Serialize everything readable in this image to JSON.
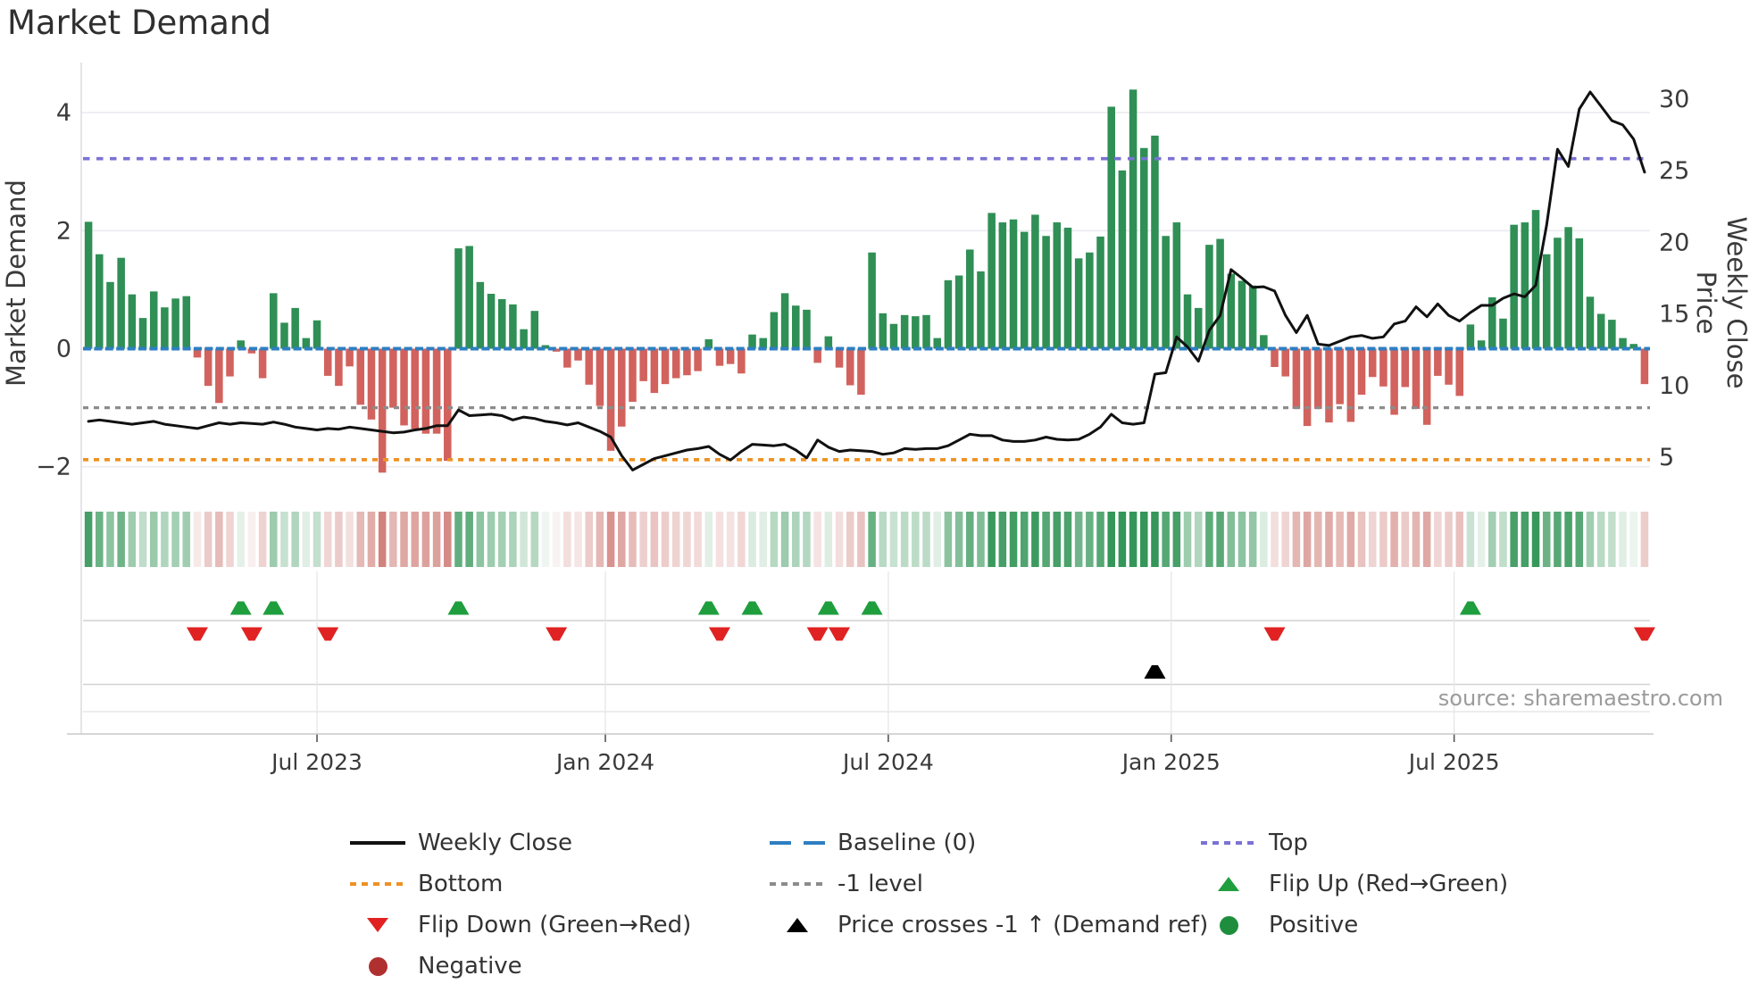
{
  "page": {
    "title": "Market Demand",
    "source_note": "source: sharemaestro.com"
  },
  "chart_data": {
    "type": "bar+line+heatmap",
    "title": "Market Demand",
    "ylabel_left": "Market Demand",
    "ylabel_right": "Weekly Close Price",
    "x_axis": "weekly dates, Feb 2023 - Nov 2025",
    "grid": true,
    "x_ticks": [
      {
        "label": "Jul 2023",
        "week": 21.5
      },
      {
        "label": "Jan 2024",
        "week": 48.0
      },
      {
        "label": "Jul 2024",
        "week": 74.0
      },
      {
        "label": "Jan 2025",
        "week": 100.0
      },
      {
        "label": "Jul 2025",
        "week": 126.0
      }
    ],
    "y_left_ticks": [
      {
        "label": "4",
        "value": 4
      },
      {
        "label": "2",
        "value": 2
      },
      {
        "label": "0",
        "value": 0
      },
      {
        "label": "−2",
        "value": -2
      }
    ],
    "y_right_ticks": [
      {
        "label": "30",
        "value": 30
      },
      {
        "label": "25",
        "value": 25
      },
      {
        "label": "20",
        "value": 20
      },
      {
        "label": "15",
        "value": 15
      },
      {
        "label": "10",
        "value": 10
      },
      {
        "label": "5",
        "value": 5
      }
    ],
    "ylim_left": [
      -2.55,
      4.85
    ],
    "ylim_right": [
      2.0,
      32.5
    ],
    "reference_lines": {
      "baseline": 0,
      "top": 3.22,
      "minus1": -1,
      "bottom": -1.88
    },
    "series": [
      {
        "name": "Market Demand (weekly bars)",
        "axis": "left",
        "values": [
          2.15,
          1.6,
          1.13,
          1.54,
          0.92,
          0.52,
          0.97,
          0.7,
          0.85,
          0.89,
          -0.15,
          -0.63,
          -0.92,
          -0.47,
          0.14,
          -0.08,
          -0.5,
          0.94,
          0.44,
          0.69,
          0.18,
          0.48,
          -0.46,
          -0.63,
          -0.3,
          -0.95,
          -1.2,
          -2.1,
          -1.0,
          -1.3,
          -1.36,
          -1.44,
          -1.44,
          -1.9,
          1.7,
          1.74,
          1.13,
          0.93,
          0.84,
          0.75,
          0.33,
          0.64,
          0.06,
          -0.05,
          -0.32,
          -0.2,
          -0.61,
          -0.97,
          -1.73,
          -1.32,
          -0.9,
          -0.55,
          -0.75,
          -0.6,
          -0.5,
          -0.45,
          -0.38,
          0.16,
          -0.29,
          -0.26,
          -0.42,
          0.24,
          0.18,
          0.62,
          0.94,
          0.73,
          0.66,
          -0.24,
          0.21,
          -0.32,
          -0.62,
          -0.78,
          1.63,
          0.6,
          0.42,
          0.57,
          0.55,
          0.57,
          0.18,
          1.16,
          1.24,
          1.68,
          1.31,
          2.3,
          2.14,
          2.19,
          1.98,
          2.27,
          1.91,
          2.14,
          2.05,
          1.53,
          1.63,
          1.9,
          4.1,
          3.02,
          4.39,
          3.4,
          3.61,
          1.91,
          2.14,
          0.92,
          0.69,
          1.76,
          1.86,
          1.27,
          1.15,
          1.07,
          0.23,
          -0.31,
          -0.47,
          -1.02,
          -1.31,
          -1.02,
          -1.25,
          -0.94,
          -1.24,
          -0.78,
          -0.48,
          -0.64,
          -1.12,
          -0.65,
          -1.02,
          -1.29,
          -0.46,
          -0.61,
          -0.8,
          0.41,
          0.14,
          0.87,
          0.51,
          2.1,
          2.14,
          2.35,
          1.6,
          1.88,
          2.06,
          1.87,
          0.88,
          0.59,
          0.49,
          0.18,
          0.08,
          -0.6
        ]
      },
      {
        "name": "Weekly Close",
        "axis": "right",
        "values": [
          7.5,
          7.6,
          7.5,
          7.4,
          7.3,
          7.4,
          7.5,
          7.3,
          7.2,
          7.1,
          7.0,
          7.2,
          7.4,
          7.3,
          7.4,
          7.35,
          7.3,
          7.45,
          7.3,
          7.1,
          7.0,
          6.9,
          7.0,
          6.95,
          7.1,
          7.0,
          6.9,
          6.8,
          6.7,
          6.75,
          6.9,
          7.0,
          7.2,
          7.2,
          8.3,
          7.9,
          7.95,
          8.0,
          7.9,
          7.6,
          7.8,
          7.7,
          7.5,
          7.4,
          7.25,
          7.4,
          7.1,
          6.8,
          6.4,
          5.1,
          4.1,
          4.5,
          4.9,
          5.1,
          5.3,
          5.5,
          5.6,
          5.75,
          5.2,
          4.8,
          5.4,
          5.9,
          5.85,
          5.8,
          5.9,
          5.5,
          4.95,
          6.2,
          5.7,
          5.4,
          5.5,
          5.45,
          5.4,
          5.2,
          5.3,
          5.6,
          5.55,
          5.6,
          5.6,
          5.8,
          6.2,
          6.6,
          6.5,
          6.5,
          6.2,
          6.1,
          6.1,
          6.2,
          6.4,
          6.25,
          6.2,
          6.25,
          6.6,
          7.1,
          8.0,
          7.4,
          7.3,
          7.4,
          10.8,
          10.9,
          13.4,
          12.7,
          11.7,
          13.85,
          14.9,
          18.1,
          17.5,
          16.85,
          16.9,
          16.6,
          14.9,
          13.7,
          14.9,
          12.9,
          12.8,
          13.1,
          13.4,
          13.5,
          13.3,
          13.4,
          14.3,
          14.5,
          15.5,
          14.8,
          15.7,
          14.9,
          14.5,
          15.1,
          15.6,
          15.6,
          16.1,
          16.4,
          16.2,
          17.0,
          21.2,
          26.5,
          25.3,
          29.3,
          30.5,
          29.5,
          28.5,
          28.2,
          27.2,
          24.9
        ]
      }
    ],
    "heatmap": "strip below chart encodes weekly demand sign/intensity (green positive, red negative)",
    "markers": {
      "flip_up_weeks": [
        14,
        17,
        34,
        57,
        61,
        68,
        72,
        127
      ],
      "flip_down_weeks": [
        10,
        15,
        22,
        43,
        58,
        67,
        69,
        109,
        143
      ],
      "price_cross_week": 98
    },
    "legend_position": "bottom, 3 columns"
  },
  "legend": {
    "col1": [
      {
        "symbol": "line-solid-black",
        "label": "Weekly Close"
      },
      {
        "symbol": "line-dotted-orange",
        "label": "Bottom"
      },
      {
        "symbol": "triangle-down-red",
        "label": "Flip Down (Green→Red)"
      },
      {
        "symbol": "circle-darkred",
        "label": "Negative"
      }
    ],
    "col2": [
      {
        "symbol": "line-dashed-blue",
        "label": "Baseline (0)"
      },
      {
        "symbol": "line-dotted-gray",
        "label": "-1 level"
      },
      {
        "symbol": "triangle-up-black",
        "label": "Price crosses -1 ↑ (Demand ref)"
      }
    ],
    "col3": [
      {
        "symbol": "line-dotted-purple",
        "label": "Top"
      },
      {
        "symbol": "triangle-up-green",
        "label": "Flip Up (Red→Green)"
      },
      {
        "symbol": "circle-green",
        "label": "Positive"
      }
    ]
  },
  "colors": {
    "bar_positive": "#2f8f55",
    "bar_negative": "#d2625d",
    "price_line": "#111111",
    "baseline": "#2e7fc2",
    "top": "#7b72d4",
    "bottom": "#ee9121",
    "minus1": "#8c8c8c",
    "flip_up": "#1f9e3e",
    "flip_down": "#e02222",
    "price_cross": "#000000",
    "positive_dot": "#1e8e3e",
    "negative_dot": "#b03030",
    "grid": "#ebebf0",
    "axis_line": "#c8c8c8",
    "tick_text": "#3a3a3a"
  }
}
